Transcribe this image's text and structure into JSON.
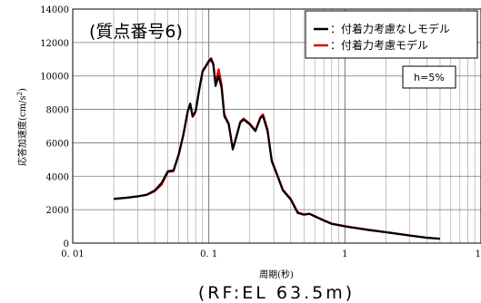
{
  "chart_data": {
    "type": "line",
    "title": "(質点番号6)",
    "caption": "(RF:EL 63.5m)",
    "xlabel": "周期(秒)",
    "ylabel": "応答加速度(cm/s2)",
    "ylabel_main": "応答加速度(cm/s",
    "ylabel_sup": "2",
    "ylabel_close": ")",
    "x_scale": "log",
    "xlim": [
      0.01,
      10
    ],
    "ylim": [
      0,
      14000
    ],
    "x_ticks": [
      0.01,
      0.1,
      1,
      10
    ],
    "x_tick_labels": [
      "0. 01",
      "0. 1",
      "1",
      "10"
    ],
    "y_ticks": [
      0,
      2000,
      4000,
      6000,
      8000,
      10000,
      12000,
      14000
    ],
    "y_tick_labels": [
      "0",
      "2000",
      "4000",
      "6000",
      "8000",
      "10000",
      "12000",
      "14000"
    ],
    "grid": true,
    "legend_position": "top-right",
    "annotation": "h=5%",
    "series": [
      {
        "name": "：付着力考慮なしモデル",
        "color": "#000000",
        "points": [
          [
            0.02,
            2650
          ],
          [
            0.025,
            2720
          ],
          [
            0.03,
            2800
          ],
          [
            0.035,
            2900
          ],
          [
            0.04,
            3150
          ],
          [
            0.045,
            3600
          ],
          [
            0.05,
            4300
          ],
          [
            0.055,
            4350
          ],
          [
            0.06,
            5300
          ],
          [
            0.065,
            6500
          ],
          [
            0.07,
            7900
          ],
          [
            0.073,
            8350
          ],
          [
            0.076,
            7600
          ],
          [
            0.08,
            7900
          ],
          [
            0.085,
            9200
          ],
          [
            0.09,
            10300
          ],
          [
            0.095,
            10600
          ],
          [
            0.1,
            10900
          ],
          [
            0.104,
            11050
          ],
          [
            0.108,
            10700
          ],
          [
            0.112,
            9400
          ],
          [
            0.118,
            10000
          ],
          [
            0.124,
            9300
          ],
          [
            0.13,
            7600
          ],
          [
            0.14,
            7100
          ],
          [
            0.15,
            5600
          ],
          [
            0.16,
            6400
          ],
          [
            0.17,
            7200
          ],
          [
            0.18,
            7400
          ],
          [
            0.2,
            7100
          ],
          [
            0.22,
            6700
          ],
          [
            0.24,
            7500
          ],
          [
            0.25,
            7600
          ],
          [
            0.27,
            6700
          ],
          [
            0.29,
            4900
          ],
          [
            0.32,
            4000
          ],
          [
            0.35,
            3150
          ],
          [
            0.4,
            2600
          ],
          [
            0.45,
            1800
          ],
          [
            0.5,
            1700
          ],
          [
            0.55,
            1750
          ],
          [
            0.6,
            1600
          ],
          [
            0.7,
            1350
          ],
          [
            0.8,
            1150
          ],
          [
            1.0,
            1000
          ],
          [
            1.2,
            900
          ],
          [
            1.5,
            780
          ],
          [
            2.0,
            650
          ],
          [
            3.0,
            450
          ],
          [
            4.0,
            320
          ],
          [
            5.0,
            260
          ]
        ]
      },
      {
        "name": "：付着力考慮モデル",
        "color": "#e00000",
        "points": [
          [
            0.02,
            2640
          ],
          [
            0.025,
            2710
          ],
          [
            0.03,
            2790
          ],
          [
            0.035,
            2880
          ],
          [
            0.04,
            3100
          ],
          [
            0.045,
            3500
          ],
          [
            0.05,
            4250
          ],
          [
            0.055,
            4300
          ],
          [
            0.06,
            5250
          ],
          [
            0.065,
            6450
          ],
          [
            0.07,
            7850
          ],
          [
            0.073,
            8300
          ],
          [
            0.076,
            7550
          ],
          [
            0.08,
            7850
          ],
          [
            0.085,
            9150
          ],
          [
            0.09,
            10250
          ],
          [
            0.095,
            10550
          ],
          [
            0.1,
            10850
          ],
          [
            0.104,
            10950
          ],
          [
            0.108,
            10650
          ],
          [
            0.112,
            9600
          ],
          [
            0.118,
            10400
          ],
          [
            0.124,
            9500
          ],
          [
            0.13,
            7700
          ],
          [
            0.14,
            7150
          ],
          [
            0.15,
            5650
          ],
          [
            0.16,
            6450
          ],
          [
            0.17,
            7250
          ],
          [
            0.18,
            7450
          ],
          [
            0.2,
            7150
          ],
          [
            0.22,
            6750
          ],
          [
            0.24,
            7550
          ],
          [
            0.25,
            7700
          ],
          [
            0.27,
            6800
          ],
          [
            0.29,
            4950
          ],
          [
            0.32,
            4050
          ],
          [
            0.35,
            3200
          ],
          [
            0.4,
            2650
          ],
          [
            0.45,
            1850
          ],
          [
            0.5,
            1720
          ],
          [
            0.55,
            1760
          ],
          [
            0.6,
            1620
          ],
          [
            0.7,
            1370
          ],
          [
            0.8,
            1170
          ],
          [
            1.0,
            1020
          ],
          [
            1.2,
            920
          ],
          [
            1.5,
            800
          ],
          [
            2.0,
            660
          ],
          [
            3.0,
            460
          ],
          [
            4.0,
            330
          ],
          [
            5.0,
            265
          ]
        ]
      }
    ]
  }
}
